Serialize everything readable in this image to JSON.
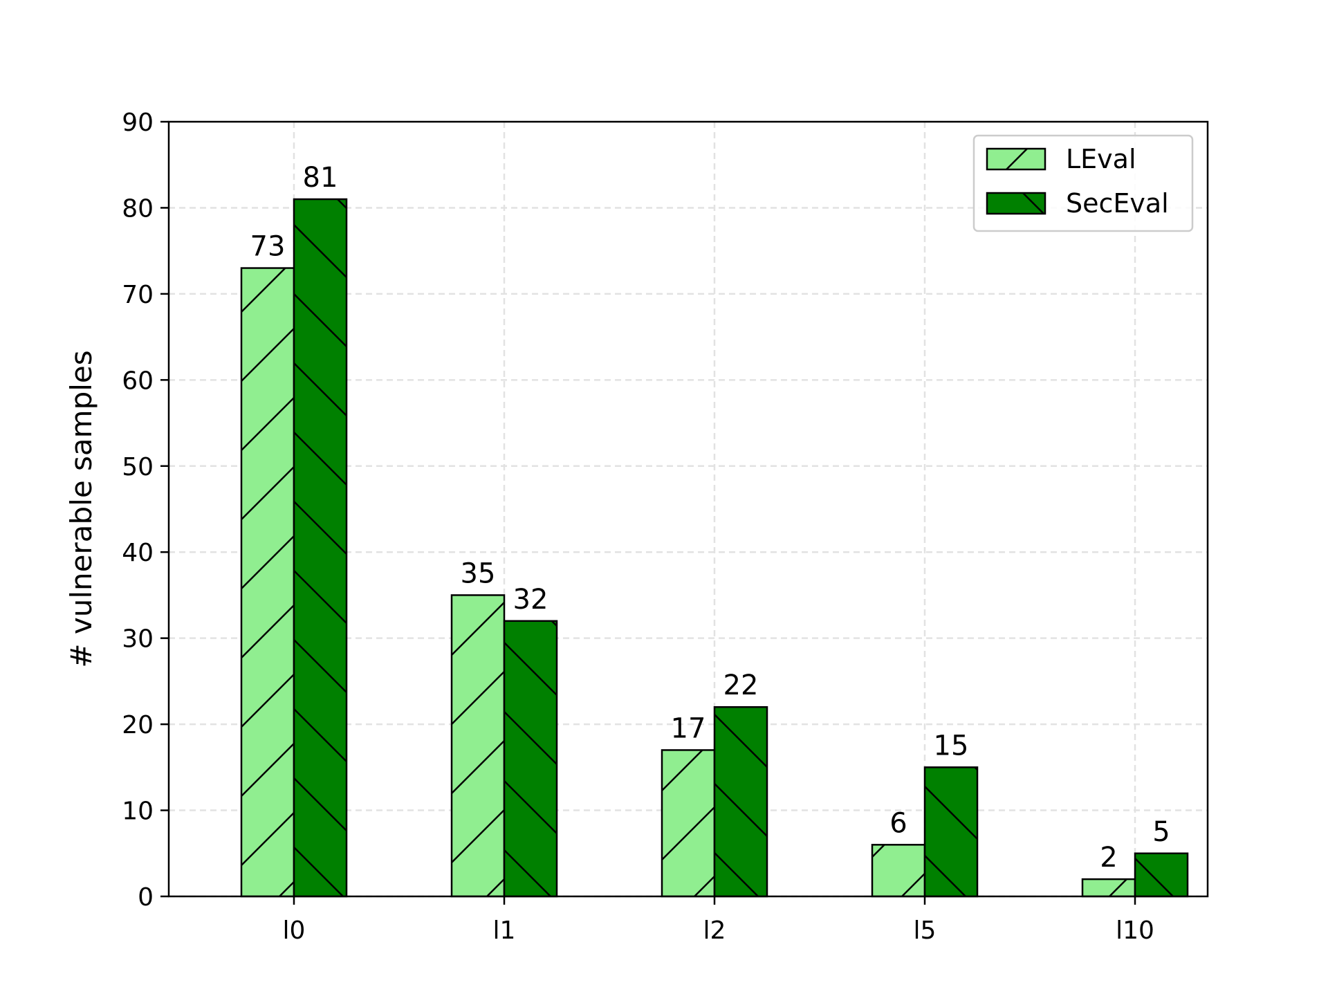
{
  "chart_data": {
    "type": "bar",
    "title": "",
    "xlabel": "",
    "ylabel": "# vulnerable samples",
    "categories": [
      "l0",
      "l1",
      "l2",
      "l5",
      "l10"
    ],
    "series": [
      {
        "name": "LEval",
        "values": [
          73,
          35,
          17,
          6,
          2
        ],
        "color": "#90ee90",
        "hatch": "forward-diagonal"
      },
      {
        "name": "SecEval",
        "values": [
          81,
          32,
          22,
          15,
          5
        ],
        "color": "#008000",
        "hatch": "backward-diagonal"
      }
    ],
    "ylim": [
      0,
      90
    ],
    "yticks": [
      0,
      10,
      20,
      30,
      40,
      50,
      60,
      70,
      80,
      90
    ],
    "grid": true,
    "legend_position": "top-right",
    "data_labels": true
  }
}
